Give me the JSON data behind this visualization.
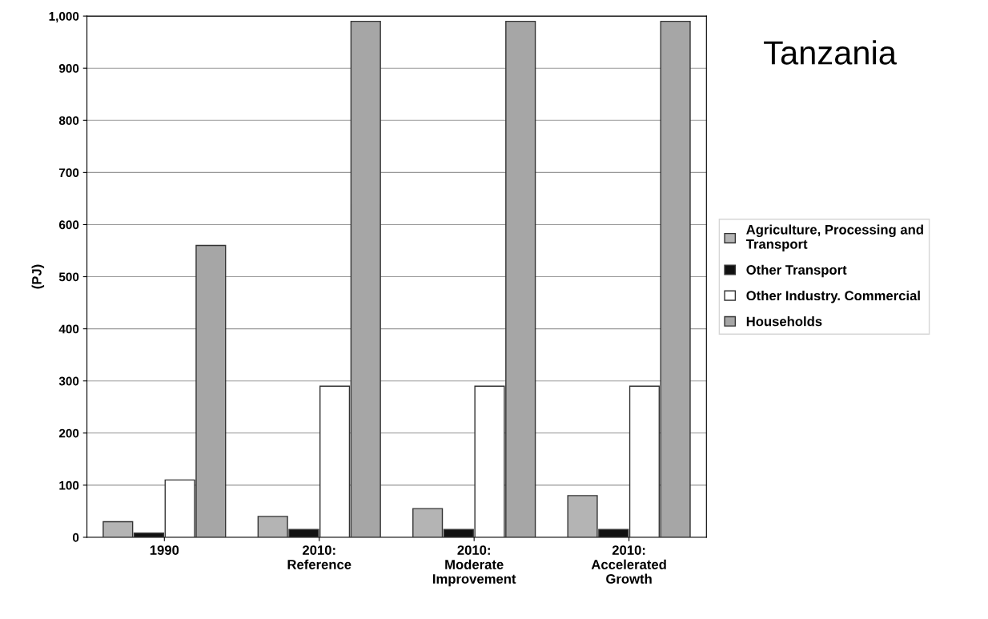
{
  "chart_data": {
    "type": "bar",
    "title": "Tanzania",
    "ylabel": "(PJ)",
    "categories": [
      "1990",
      "2010:\nReference",
      "2010:\nModerate\nImprovement",
      "2010:\nAccelerated\nGrowth"
    ],
    "series": [
      {
        "name": "Agriculture, Processing and\nTransport",
        "color": "#b4b4b4",
        "values": [
          30,
          40,
          55,
          80
        ]
      },
      {
        "name": "Other Transport",
        "color": "#111111",
        "values": [
          8,
          15,
          15,
          15
        ]
      },
      {
        "name": "Other Industry. Commercial",
        "color": "#ffffff",
        "values": [
          110,
          290,
          290,
          290
        ]
      },
      {
        "name": "Households",
        "color": "#a6a6a6",
        "values": [
          560,
          990,
          990,
          990
        ]
      }
    ],
    "ylim": [
      0,
      1000
    ],
    "yticks": [
      0,
      100,
      200,
      300,
      400,
      500,
      600,
      700,
      800,
      900,
      {
        "value": 1000,
        "label": "1,000"
      }
    ],
    "grid": "y",
    "legend": "right"
  }
}
